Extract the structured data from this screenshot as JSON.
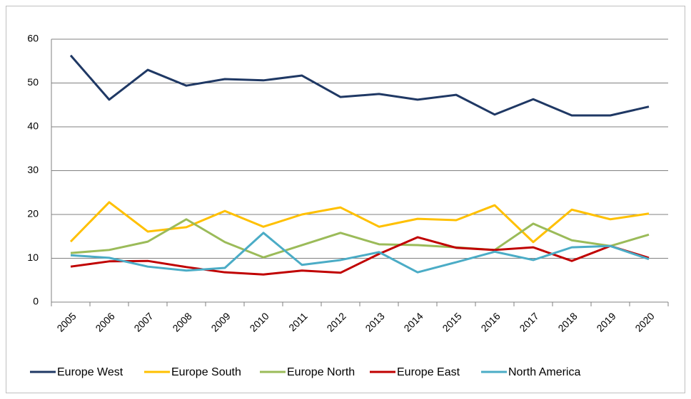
{
  "chart_data": {
    "type": "line",
    "categories": [
      "2005",
      "2006",
      "2007",
      "2008",
      "2009",
      "2010",
      "2011",
      "2012",
      "2013",
      "2014",
      "2015",
      "2016",
      "2017",
      "2018",
      "2019",
      "2020"
    ],
    "series": [
      {
        "name": "Europe West",
        "color": "#1f3864",
        "values": [
          56.3,
          46.2,
          53,
          49.4,
          50.9,
          50.6,
          51.7,
          46.8,
          47.5,
          46.2,
          47.3,
          42.8,
          46.3,
          42.6,
          42.6,
          44.6
        ]
      },
      {
        "name": "Europe South",
        "color": "#ffc000",
        "values": [
          13.8,
          22.8,
          16.1,
          17.1,
          20.8,
          17.2,
          20,
          21.6,
          17.2,
          19,
          18.7,
          22.1,
          13.7,
          21.1,
          18.9,
          20.2
        ]
      },
      {
        "name": "Europe North",
        "color": "#9bbb59",
        "values": [
          11.2,
          11.9,
          13.8,
          18.9,
          13.7,
          10.2,
          13,
          15.8,
          13.2,
          13,
          12.5,
          11.9,
          17.9,
          14.1,
          12.8,
          15.4
        ]
      },
      {
        "name": "Europe East",
        "color": "#c00000",
        "values": [
          8.1,
          9.3,
          9.4,
          8,
          6.8,
          6.3,
          7.2,
          6.7,
          11,
          14.8,
          12.4,
          11.9,
          12.5,
          9.4,
          12.8,
          10.1
        ]
      },
      {
        "name": "North America",
        "color": "#4bacc6",
        "values": [
          10.7,
          10.1,
          8.1,
          7.2,
          7.8,
          15.8,
          8.5,
          9.6,
          11.4,
          6.8,
          9.1,
          11.5,
          9.6,
          12.5,
          12.8,
          9.8
        ]
      }
    ],
    "ylim": [
      0,
      60
    ],
    "yticks": [
      0,
      10,
      20,
      30,
      40,
      50,
      60
    ],
    "grid": true,
    "legend": "bottom"
  }
}
